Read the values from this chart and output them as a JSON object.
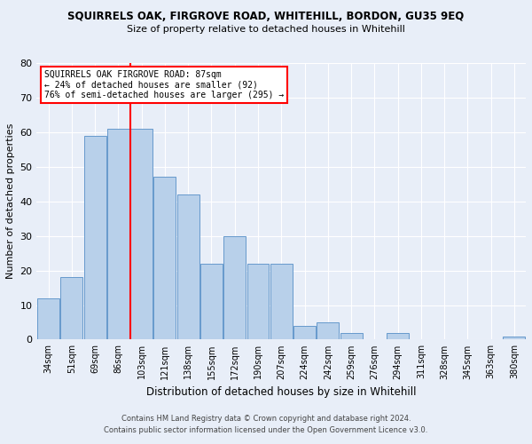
{
  "title": "SQUIRRELS OAK, FIRGROVE ROAD, WHITEHILL, BORDON, GU35 9EQ",
  "subtitle": "Size of property relative to detached houses in Whitehill",
  "xlabel": "Distribution of detached houses by size in Whitehill",
  "ylabel": "Number of detached properties",
  "categories": [
    "34sqm",
    "51sqm",
    "69sqm",
    "86sqm",
    "103sqm",
    "121sqm",
    "138sqm",
    "155sqm",
    "172sqm",
    "190sqm",
    "207sqm",
    "224sqm",
    "242sqm",
    "259sqm",
    "276sqm",
    "294sqm",
    "311sqm",
    "328sqm",
    "345sqm",
    "363sqm",
    "380sqm"
  ],
  "values": [
    12,
    18,
    59,
    61,
    61,
    47,
    42,
    22,
    30,
    22,
    22,
    4,
    5,
    2,
    0,
    2,
    0,
    0,
    0,
    0,
    1
  ],
  "bar_color": "#b8d0ea",
  "bar_edge_color": "#6699cc",
  "background_color": "#e8eef8",
  "grid_color": "#ffffff",
  "red_line_x": 3.5,
  "annotation_title": "SQUIRRELS OAK FIRGROVE ROAD: 87sqm",
  "annotation_line2": "← 24% of detached houses are smaller (92)",
  "annotation_line3": "76% of semi-detached houses are larger (295) →",
  "footnote1": "Contains HM Land Registry data © Crown copyright and database right 2024.",
  "footnote2": "Contains public sector information licensed under the Open Government Licence v3.0.",
  "ylim": [
    0,
    80
  ],
  "yticks": [
    0,
    10,
    20,
    30,
    40,
    50,
    60,
    70,
    80
  ]
}
